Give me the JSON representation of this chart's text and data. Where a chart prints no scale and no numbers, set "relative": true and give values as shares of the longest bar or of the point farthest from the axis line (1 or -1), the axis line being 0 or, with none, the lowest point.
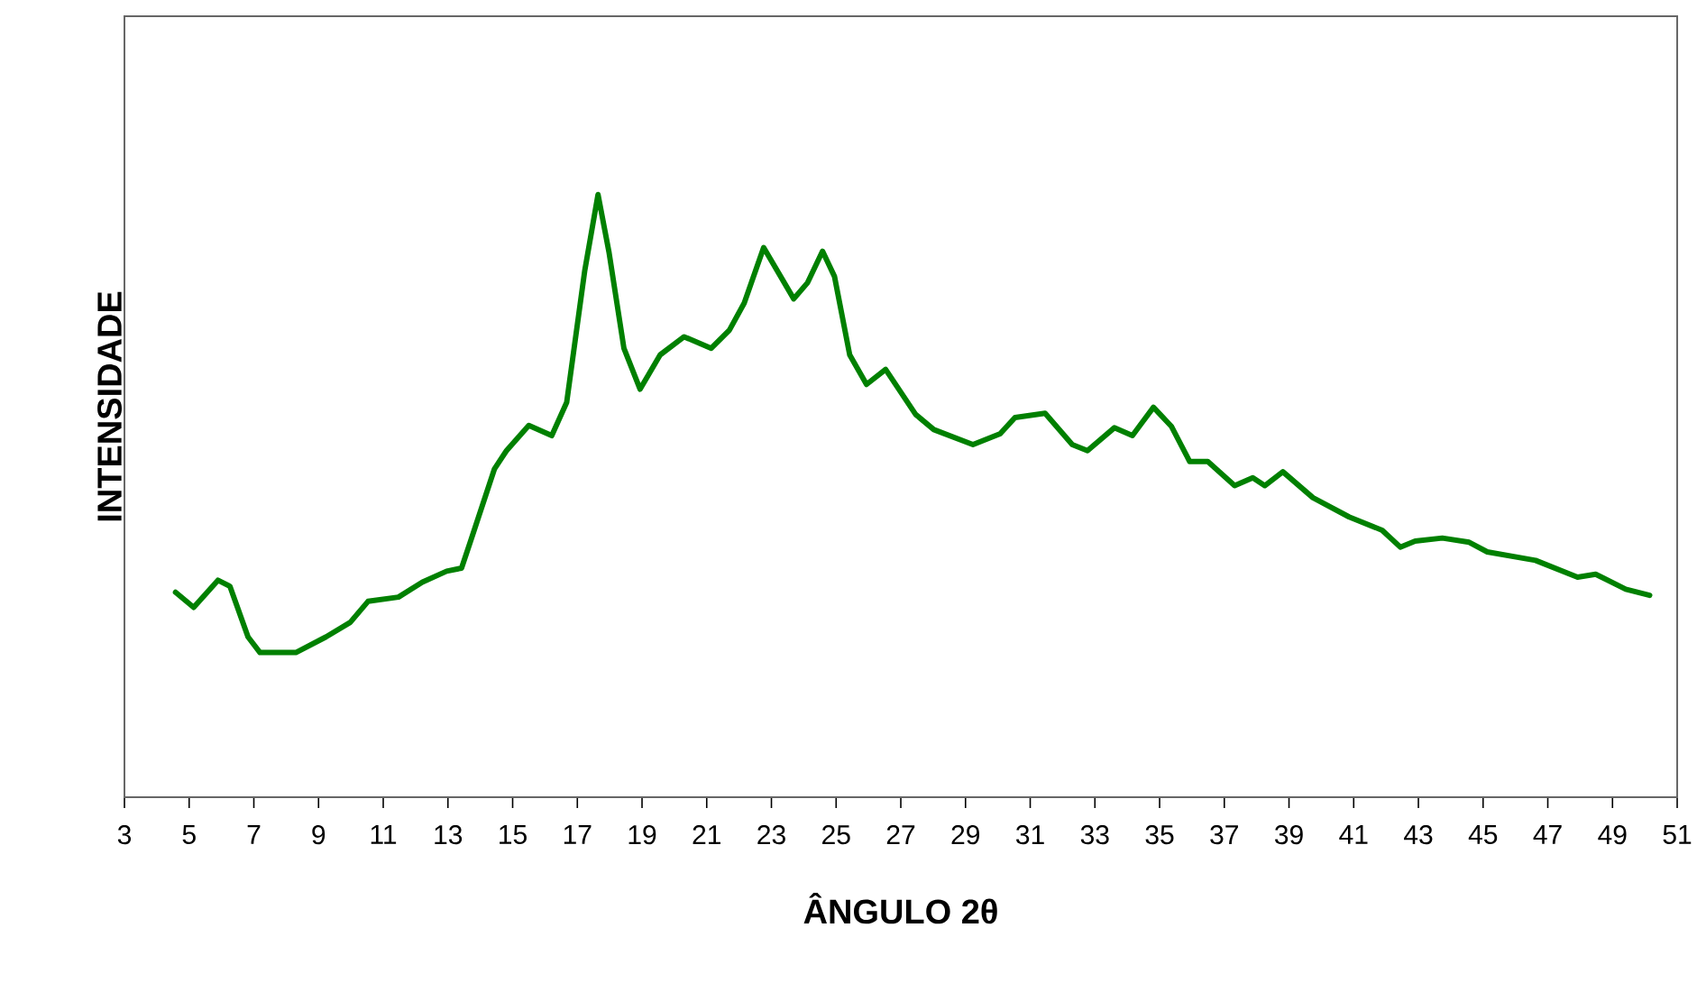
{
  "chart_data": {
    "type": "line",
    "xlabel": "ÂNGULO 2θ",
    "ylabel": "INTENSIDADE",
    "relative": true,
    "xlim": [
      3,
      51
    ],
    "xticks": [
      3,
      5,
      7,
      9,
      11,
      13,
      15,
      17,
      19,
      21,
      23,
      25,
      27,
      29,
      31,
      33,
      35,
      37,
      39,
      41,
      43,
      45,
      47,
      49,
      51
    ],
    "series": [
      {
        "color": "#008000",
        "x": [
          4.58,
          5.14,
          5.89,
          6.26,
          6.82,
          7.19,
          8.3,
          9.23,
          9.98,
          10.53,
          11.47,
          12.21,
          12.96,
          13.42,
          13.7,
          14.44,
          14.81,
          15.5,
          16.21,
          16.67,
          17.23,
          17.64,
          17.98,
          18.44,
          18.94,
          19.56,
          20.3,
          21.14,
          21.7,
          22.16,
          22.76,
          23.69,
          24.12,
          24.58,
          24.95,
          25.42,
          25.94,
          26.53,
          27.46,
          28.02,
          29.23,
          30.07,
          30.53,
          31.46,
          32.3,
          32.77,
          33.6,
          34.16,
          34.81,
          35.37,
          35.93,
          36.49,
          37.32,
          37.88,
          38.25,
          38.81,
          39.74,
          40.86,
          41.88,
          42.44,
          42.9,
          43.74,
          44.57,
          45.13,
          46.62,
          47.92,
          48.48,
          49.41,
          50.15
        ],
        "values": [
          0.34,
          0.315,
          0.36,
          0.35,
          0.266,
          0.24,
          0.24,
          0.266,
          0.29,
          0.325,
          0.332,
          0.357,
          0.375,
          0.38,
          0.425,
          0.545,
          0.575,
          0.617,
          0.6,
          0.655,
          0.874,
          1.0,
          0.904,
          0.745,
          0.677,
          0.734,
          0.764,
          0.745,
          0.775,
          0.82,
          0.912,
          0.827,
          0.854,
          0.906,
          0.864,
          0.734,
          0.685,
          0.71,
          0.635,
          0.61,
          0.585,
          0.603,
          0.63,
          0.637,
          0.585,
          0.575,
          0.613,
          0.6,
          0.647,
          0.615,
          0.557,
          0.557,
          0.517,
          0.53,
          0.517,
          0.54,
          0.497,
          0.465,
          0.443,
          0.415,
          0.425,
          0.43,
          0.423,
          0.407,
          0.393,
          0.365,
          0.37,
          0.345,
          0.335
        ]
      }
    ]
  }
}
